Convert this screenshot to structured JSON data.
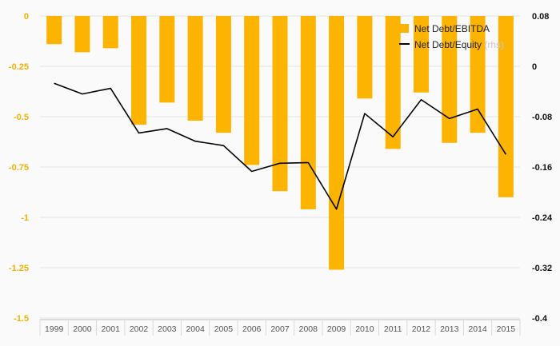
{
  "chart_data": {
    "type": "bar",
    "categories": [
      "1999",
      "2000",
      "2001",
      "2002",
      "2003",
      "2004",
      "2005",
      "2006",
      "2007",
      "2008",
      "2009",
      "2010",
      "2011",
      "2012",
      "2013",
      "2014",
      "2015"
    ],
    "series": [
      {
        "name": "Net Debt/EBITDA",
        "type": "bar",
        "axis": "left",
        "color": "#fcb400",
        "values": [
          -0.14,
          -0.18,
          -0.16,
          -0.54,
          -0.43,
          -0.52,
          -0.58,
          -0.74,
          -0.87,
          -0.96,
          -1.26,
          -0.41,
          -0.66,
          -0.38,
          -0.63,
          -0.58,
          -0.9
        ]
      },
      {
        "name": "Net Debt/Equity",
        "name_suffix": " (rhs)",
        "type": "line",
        "axis": "right",
        "color": "#000000",
        "values": [
          -0.027,
          -0.044,
          -0.035,
          -0.106,
          -0.099,
          -0.119,
          -0.126,
          -0.167,
          -0.154,
          -0.153,
          -0.227,
          -0.075,
          -0.112,
          -0.053,
          -0.083,
          -0.068,
          -0.14
        ]
      }
    ],
    "yleft": {
      "ylim": [
        -1.5,
        0
      ],
      "ticks": [
        0,
        -0.25,
        -0.5,
        -0.75,
        -1,
        -1.25,
        -1.5
      ],
      "tick_labels": [
        "0",
        "-0.25",
        "-0.5",
        "-0.75",
        "-1",
        "-1.25",
        "-1.5"
      ],
      "color": "#f5b000"
    },
    "yright": {
      "ylim": [
        -0.4,
        0.08
      ],
      "ticks": [
        0.08,
        0,
        -0.08,
        -0.16,
        -0.24,
        -0.32,
        -0.4
      ],
      "tick_labels": [
        "0.08",
        "0",
        "-0.08",
        "-0.16",
        "-0.24",
        "-0.32",
        "-0.4"
      ],
      "color": "#111111"
    },
    "grid": true,
    "legend_position": "top-right"
  }
}
